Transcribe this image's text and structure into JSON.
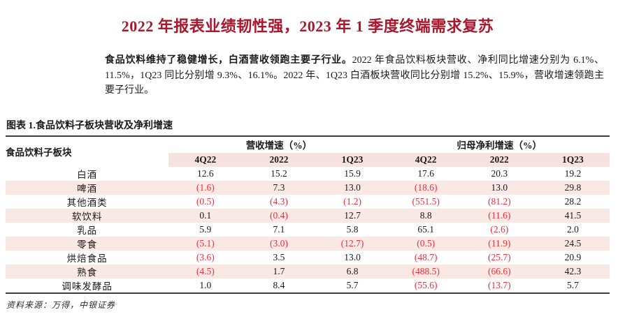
{
  "page": {
    "title": "2022 年报表业绩韧性强，2023 年 1 季度终端需求复苏",
    "summary_lead": "食品饮料维持了稳健增长，白酒营收领跑主要子行业。",
    "summary_rest": "2022 年食品饮料板块营收、净利同比增速分别为 6.1%、11.5%，1Q23 同比分别增 9.3%、16.1%。2022 年、1Q23 白酒板块营收同比分别增 15.2%、15.9%，营收增速领跑主要子行业。"
  },
  "figure": {
    "caption": "图表 1.食品饮料子板块营收及净利增速",
    "source": "资料来源：万得，中银证券"
  },
  "table": {
    "col1_header": "食品饮料子板块",
    "group_headers": [
      "营收增速（%）",
      "归母净利增速（%）"
    ],
    "sub_headers": [
      "4Q22",
      "2022",
      "1Q23",
      "4Q22",
      "2022",
      "1Q23"
    ],
    "rows": [
      {
        "label": "白酒",
        "values": [
          "12.6",
          "15.2",
          "15.9",
          "17.6",
          "20.3",
          "19.2"
        ]
      },
      {
        "label": "啤酒",
        "values": [
          "(1.6)",
          "7.3",
          "13.0",
          "(18.6)",
          "13.0",
          "29.8"
        ]
      },
      {
        "label": "其他酒类",
        "values": [
          "(0.5)",
          "(4.3)",
          "(1.2)",
          "(551.5)",
          "(81.2)",
          "28.2"
        ]
      },
      {
        "label": "软饮料",
        "values": [
          "0.1",
          "(0.4)",
          "12.7",
          "8.8",
          "(11.6)",
          "41.5"
        ]
      },
      {
        "label": "乳品",
        "values": [
          "5.9",
          "7.1",
          "5.8",
          "65.1",
          "(2.6)",
          "2.0"
        ]
      },
      {
        "label": "零食",
        "values": [
          "(5.1)",
          "(3.0)",
          "(12.7)",
          "(0.5)",
          "(11.9)",
          "24.5"
        ]
      },
      {
        "label": "烘焙食品",
        "values": [
          "(3.6)",
          "3.5",
          "13.0",
          "(48.7)",
          "(25.7)",
          "20.9"
        ]
      },
      {
        "label": "熟食",
        "values": [
          "(4.5)",
          "1.7",
          "6.8",
          "(488.5)",
          "(66.6)",
          "42.3"
        ]
      },
      {
        "label": "调味发酵品",
        "values": [
          "1.0",
          "8.4",
          "5.7",
          "(55.6)",
          "(13.7)",
          "5.7"
        ]
      }
    ]
  },
  "colors": {
    "title_red": "#A9182C",
    "negative_red": "#ED2F3A",
    "stripe_pink": "#FAE8E5",
    "header_pink": "#F8E2DF",
    "rule_dark": "#3d3d3d"
  }
}
